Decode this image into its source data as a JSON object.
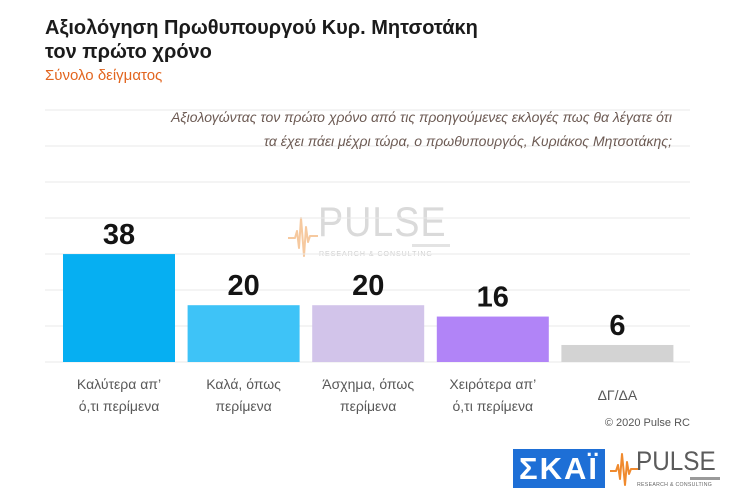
{
  "chart_data": {
    "type": "bar",
    "title": [
      "Αξιολόγηση Πρωθυπουργού Κυρ. Μητσοτάκη",
      "τον πρώτο χρόνο"
    ],
    "subtitle": "Σύνολο δείγματος",
    "categories": [
      "Καλύτερα απ’ ό,τι περίμενα",
      "Καλά, όπως περίμενα",
      "Άσχημα, όπως περίμενα",
      "Χειρότερα απ’ ό,τι περίμενα",
      "ΔΓ/ΔΑ"
    ],
    "values": [
      38,
      20,
      20,
      16,
      6
    ],
    "colors": [
      "#06aff2",
      "#3ec3f7",
      "#d2c4ea",
      "#b184f7",
      "#d3d3d3"
    ],
    "xlabel": "",
    "ylabel": "",
    "grid": true,
    "legend": "none"
  },
  "question": {
    "line1": "Αξιολογώντας τον πρώτο χρόνο από τις προηγούμενες εκλογές πως θα λέγατε ότι",
    "line2": "τα έχει πάει μέχρι τώρα, ο πρωθυπουργός, Κυριάκος Μητσοτάκης;"
  },
  "footer": {
    "copyright": "© 2020 Pulse RC"
  },
  "logos": {
    "skai": "ΣΚΑΪ",
    "pulse": "PULSE",
    "pulse_tagline": "RESEARCH & CONSULTING",
    "pulse_icon": "pulse-waveform-icon"
  },
  "colors": {
    "title": "#1b1b1b",
    "subtitle": "#e2651f",
    "question": "#6c5a53",
    "brand_orange": "#f08a2e",
    "skai_blue": "#1e6fd6"
  }
}
